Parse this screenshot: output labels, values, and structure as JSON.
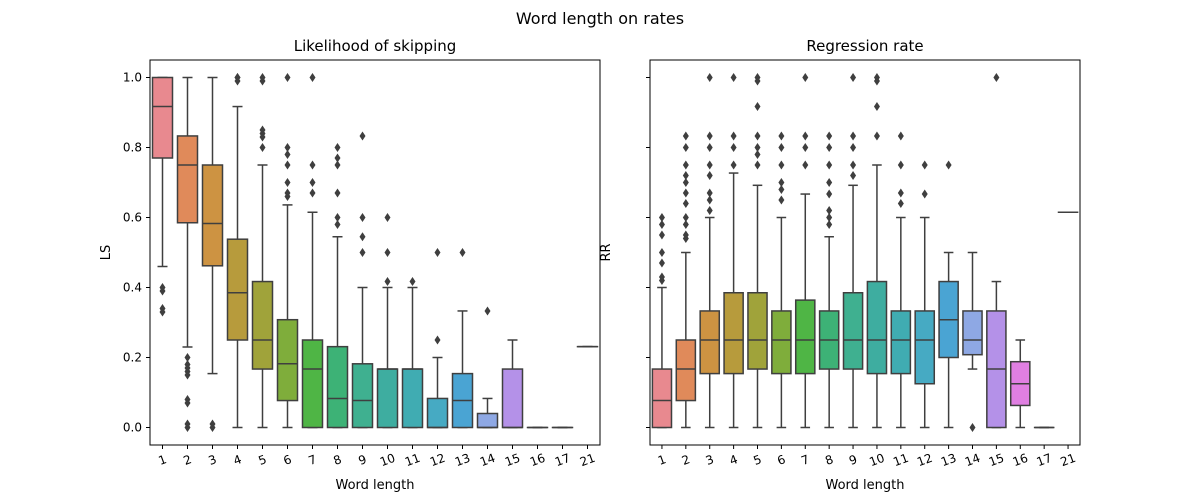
{
  "chart_data": {
    "title": "Word length on rates",
    "panels": [
      {
        "type": "box",
        "title": "Likelihood of skipping",
        "xlabel": "Word length",
        "ylabel": "LS",
        "ylim": [
          -0.05,
          1.05
        ],
        "yticks": [
          "0.0",
          "0.2",
          "0.4",
          "0.6",
          "0.8",
          "1.0"
        ],
        "categories": [
          "1",
          "2",
          "3",
          "4",
          "5",
          "6",
          "7",
          "8",
          "9",
          "10",
          "11",
          "12",
          "13",
          "14",
          "15",
          "16",
          "17",
          "21"
        ],
        "boxes": [
          {
            "q1": 0.77,
            "med": 0.917,
            "q3": 1.0,
            "wlo": 0.46,
            "whi": 1.0,
            "fliers": [
              0.4,
              0.39,
              0.34,
              0.33
            ]
          },
          {
            "q1": 0.585,
            "med": 0.75,
            "q3": 0.833,
            "wlo": 0.23,
            "whi": 1.0,
            "fliers": [
              0.2,
              0.18,
              0.17,
              0.16,
              0.15,
              0.08,
              0.07,
              0.01,
              0.0
            ]
          },
          {
            "q1": 0.462,
            "med": 0.583,
            "q3": 0.75,
            "wlo": 0.154,
            "whi": 1.0,
            "fliers": [
              0.01,
              0.0
            ]
          },
          {
            "q1": 0.25,
            "med": 0.385,
            "q3": 0.538,
            "wlo": 0.0,
            "whi": 0.917,
            "fliers": [
              1.0,
              1.0,
              0.99
            ]
          },
          {
            "q1": 0.167,
            "med": 0.25,
            "q3": 0.417,
            "wlo": 0.0,
            "whi": 0.75,
            "fliers": [
              1.0,
              0.99,
              0.85,
              0.84,
              0.83,
              0.8
            ]
          },
          {
            "q1": 0.077,
            "med": 0.182,
            "q3": 0.308,
            "wlo": 0.0,
            "whi": 0.636,
            "fliers": [
              1.0,
              0.8,
              0.78,
              0.75,
              0.7,
              0.67,
              0.66
            ]
          },
          {
            "q1": 0.0,
            "med": 0.167,
            "q3": 0.25,
            "wlo": 0.0,
            "whi": 0.615,
            "fliers": [
              1.0,
              0.75,
              0.7,
              0.67
            ]
          },
          {
            "q1": 0.0,
            "med": 0.083,
            "q3": 0.231,
            "wlo": 0.0,
            "whi": 0.545,
            "fliers": [
              0.8,
              0.77,
              0.75,
              0.67,
              0.6,
              0.58
            ]
          },
          {
            "q1": 0.0,
            "med": 0.077,
            "q3": 0.182,
            "wlo": 0.0,
            "whi": 0.4,
            "fliers": [
              0.833,
              0.6,
              0.545,
              0.5
            ]
          },
          {
            "q1": 0.0,
            "med": 0.167,
            "q3": 0.167,
            "wlo": 0.0,
            "whi": 0.4,
            "fliers": [
              0.6,
              0.5,
              0.417
            ]
          },
          {
            "q1": 0.0,
            "med": 0.167,
            "q3": 0.167,
            "wlo": 0.0,
            "whi": 0.4,
            "fliers": [
              0.417
            ]
          },
          {
            "q1": 0.0,
            "med": 0.0,
            "q3": 0.083,
            "wlo": 0.0,
            "whi": 0.2,
            "fliers": [
              0.5,
              0.25
            ]
          },
          {
            "q1": 0.0,
            "med": 0.077,
            "q3": 0.154,
            "wlo": 0.0,
            "whi": 0.333,
            "fliers": [
              0.5
            ]
          },
          {
            "q1": 0.0,
            "med": 0.0,
            "q3": 0.04,
            "wlo": 0.0,
            "whi": 0.083,
            "fliers": [
              0.333
            ]
          },
          {
            "q1": 0.0,
            "med": 0.0,
            "q3": 0.167,
            "wlo": 0.0,
            "whi": 0.25,
            "fliers": []
          },
          {
            "q1": 0.0,
            "med": 0.0,
            "q3": 0.0,
            "wlo": 0.0,
            "whi": 0.0,
            "fliers": []
          },
          {
            "q1": 0.0,
            "med": 0.0,
            "q3": 0.0,
            "wlo": 0.0,
            "whi": 0.0,
            "fliers": []
          },
          {
            "q1": 0.231,
            "med": 0.231,
            "q3": 0.231,
            "wlo": 0.231,
            "whi": 0.231,
            "fliers": []
          }
        ]
      },
      {
        "type": "box",
        "title": "Regression rate",
        "xlabel": "Word length",
        "ylabel": "RR",
        "ylim": [
          -0.05,
          1.05
        ],
        "categories": [
          "1",
          "2",
          "3",
          "4",
          "5",
          "6",
          "7",
          "8",
          "9",
          "10",
          "11",
          "12",
          "13",
          "14",
          "15",
          "16",
          "17",
          "21"
        ],
        "boxes": [
          {
            "q1": 0.0,
            "med": 0.077,
            "q3": 0.167,
            "wlo": 0.0,
            "whi": 0.4,
            "fliers": [
              0.6,
              0.58,
              0.55,
              0.5,
              0.47,
              0.43,
              0.42
            ]
          },
          {
            "q1": 0.077,
            "med": 0.167,
            "q3": 0.25,
            "wlo": 0.0,
            "whi": 0.5,
            "fliers": [
              0.833,
              0.8,
              0.75,
              0.72,
              0.7,
              0.67,
              0.64,
              0.6,
              0.58,
              0.55,
              0.54
            ]
          },
          {
            "q1": 0.154,
            "med": 0.25,
            "q3": 0.333,
            "wlo": 0.0,
            "whi": 0.6,
            "fliers": [
              1.0,
              0.833,
              0.8,
              0.75,
              0.72,
              0.67,
              0.65,
              0.62
            ]
          },
          {
            "q1": 0.154,
            "med": 0.25,
            "q3": 0.385,
            "wlo": 0.0,
            "whi": 0.727,
            "fliers": [
              1.0,
              0.833,
              0.8,
              0.75
            ]
          },
          {
            "q1": 0.167,
            "med": 0.25,
            "q3": 0.385,
            "wlo": 0.0,
            "whi": 0.692,
            "fliers": [
              1.0,
              0.99,
              0.917,
              0.833,
              0.8,
              0.78,
              0.75
            ]
          },
          {
            "q1": 0.154,
            "med": 0.25,
            "q3": 0.333,
            "wlo": 0.0,
            "whi": 0.6,
            "fliers": [
              0.833,
              0.8,
              0.75,
              0.7,
              0.68,
              0.65
            ]
          },
          {
            "q1": 0.154,
            "med": 0.25,
            "q3": 0.364,
            "wlo": 0.0,
            "whi": 0.667,
            "fliers": [
              1.0,
              0.833,
              0.8,
              0.75
            ]
          },
          {
            "q1": 0.167,
            "med": 0.25,
            "q3": 0.333,
            "wlo": 0.0,
            "whi": 0.545,
            "fliers": [
              0.833,
              0.8,
              0.75,
              0.7,
              0.667,
              0.62,
              0.6,
              0.58
            ]
          },
          {
            "q1": 0.167,
            "med": 0.25,
            "q3": 0.385,
            "wlo": 0.0,
            "whi": 0.692,
            "fliers": [
              1.0,
              0.833,
              0.8,
              0.75,
              0.72
            ]
          },
          {
            "q1": 0.154,
            "med": 0.25,
            "q3": 0.417,
            "wlo": 0.0,
            "whi": 0.75,
            "fliers": [
              1.0,
              0.99,
              0.917,
              0.833
            ]
          },
          {
            "q1": 0.154,
            "med": 0.25,
            "q3": 0.333,
            "wlo": 0.0,
            "whi": 0.6,
            "fliers": [
              0.833,
              0.75,
              0.67,
              0.64
            ]
          },
          {
            "q1": 0.125,
            "med": 0.25,
            "q3": 0.333,
            "wlo": 0.0,
            "whi": 0.6,
            "fliers": [
              0.75,
              0.667
            ]
          },
          {
            "q1": 0.2,
            "med": 0.308,
            "q3": 0.417,
            "wlo": 0.0,
            "whi": 0.5,
            "fliers": [
              0.75
            ]
          },
          {
            "q1": 0.208,
            "med": 0.25,
            "q3": 0.333,
            "wlo": 0.167,
            "whi": 0.5,
            "fliers": [
              0.0
            ]
          },
          {
            "q1": 0.0,
            "med": 0.167,
            "q3": 0.333,
            "wlo": 0.0,
            "whi": 0.417,
            "fliers": [
              1.0
            ]
          },
          {
            "q1": 0.063,
            "med": 0.125,
            "q3": 0.188,
            "wlo": 0.0,
            "whi": 0.25,
            "fliers": []
          },
          {
            "q1": 0.0,
            "med": 0.0,
            "q3": 0.0,
            "wlo": 0.0,
            "whi": 0.0,
            "fliers": []
          },
          {
            "q1": 0.615,
            "med": 0.615,
            "q3": 0.615,
            "wlo": 0.615,
            "whi": 0.615,
            "fliers": []
          }
        ]
      }
    ],
    "palette": [
      "#e8898f",
      "#e08a5a",
      "#cd9342",
      "#b79b3c",
      "#a0a33a",
      "#7fad3b",
      "#4fb545",
      "#3db276",
      "#3fb090",
      "#3eadA0",
      "#40acb2",
      "#46aac3",
      "#4aa4d3",
      "#8ea8e4",
      "#b491e8",
      "#e07fe2",
      "#e584c6",
      "#e587b0"
    ]
  }
}
